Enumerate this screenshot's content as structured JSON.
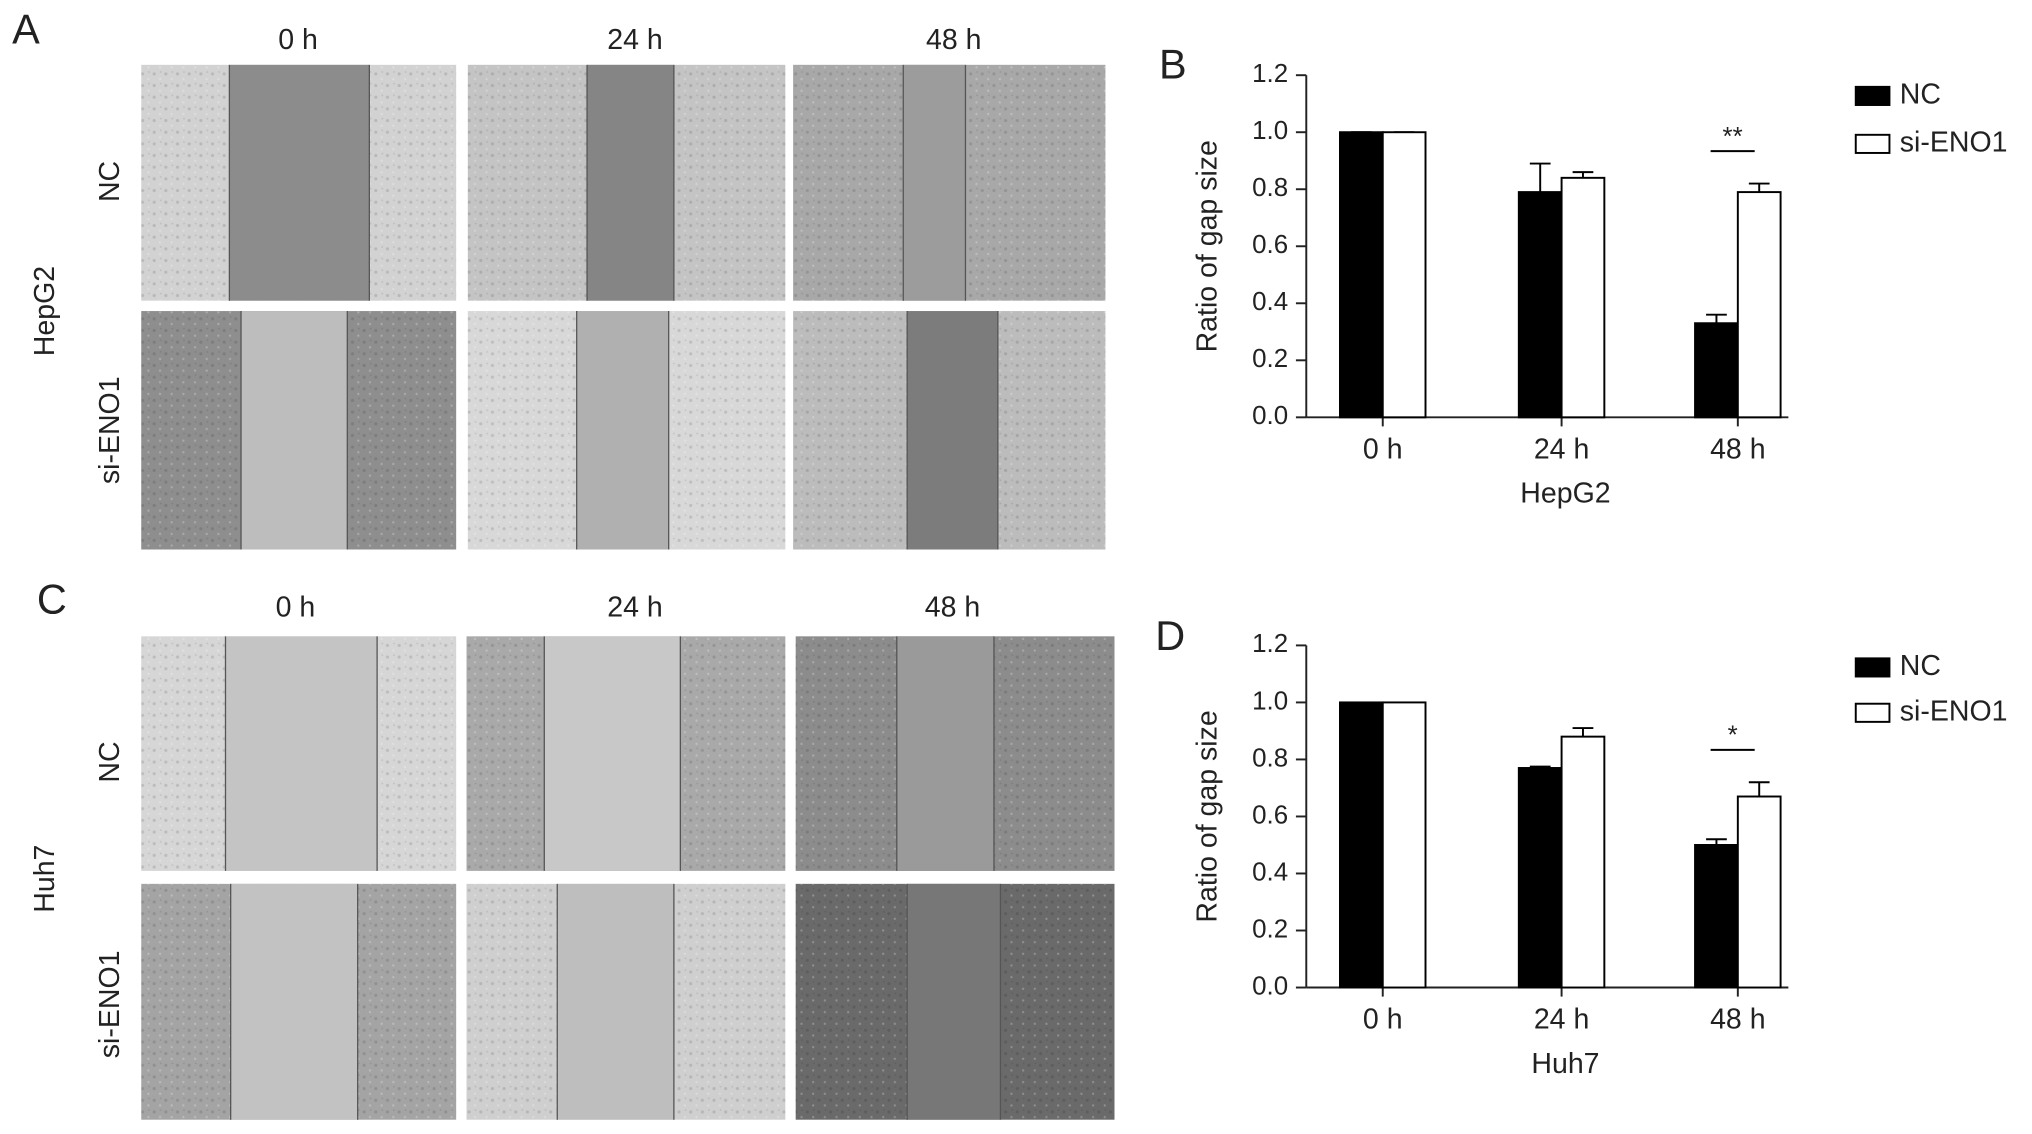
{
  "panels": [
    {
      "letter": "A",
      "cell_line": "HepG2",
      "columns": [
        "0 h",
        "24 h",
        "48 h"
      ],
      "rows": [
        "NC",
        "si-ENO1"
      ]
    },
    {
      "letter": "C",
      "cell_line": "Huh7",
      "columns": [
        "0 h",
        "24 h",
        "48 h"
      ],
      "rows": [
        "NC",
        "si-ENO1"
      ]
    }
  ],
  "chart_data": [
    {
      "type": "bar",
      "letter": "B",
      "x_label": "HepG2",
      "y_label": "Ratio of gap size",
      "categories": [
        "0 h",
        "24 h",
        "48 h"
      ],
      "series": [
        {
          "name": "NC",
          "color": "#000000",
          "values": [
            1.0,
            0.79,
            0.33
          ],
          "errors": [
            0,
            0.1,
            0.03
          ]
        },
        {
          "name": "si-ENO1",
          "color": "#ffffff",
          "values": [
            1.0,
            0.84,
            0.79
          ],
          "errors": [
            0,
            0.02,
            0.03
          ]
        }
      ],
      "annotations": [
        {
          "text": "**",
          "x": "48 h"
        }
      ],
      "ylim": [
        0,
        1.2
      ],
      "yticks": [
        {
          "value": 0,
          "label": "0.0"
        },
        0.2,
        0.4,
        0.6,
        0.8,
        {
          "value": 1,
          "label": "1.0"
        },
        1.2
      ],
      "legend": "top-right"
    },
    {
      "type": "bar",
      "letter": "D",
      "x_label": "Huh7",
      "y_label": "Ratio of gap size",
      "categories": [
        "0 h",
        "24 h",
        "48 h"
      ],
      "series": [
        {
          "name": "NC",
          "color": "#000000",
          "values": [
            1.0,
            0.77,
            0.5
          ],
          "errors": [
            0,
            0.005,
            0.02
          ]
        },
        {
          "name": "si-ENO1",
          "color": "#ffffff",
          "values": [
            1.0,
            0.88,
            0.67
          ],
          "errors": [
            0,
            0.03,
            0.05
          ]
        }
      ],
      "annotations": [
        {
          "text": "*",
          "x": "48 h"
        }
      ],
      "ylim": [
        0,
        1.2
      ],
      "yticks": [
        {
          "value": 0,
          "label": "0.0"
        },
        0.2,
        0.4,
        0.6,
        0.8,
        {
          "value": 1,
          "label": "1.0"
        },
        1.2
      ],
      "legend": "top-right"
    }
  ]
}
